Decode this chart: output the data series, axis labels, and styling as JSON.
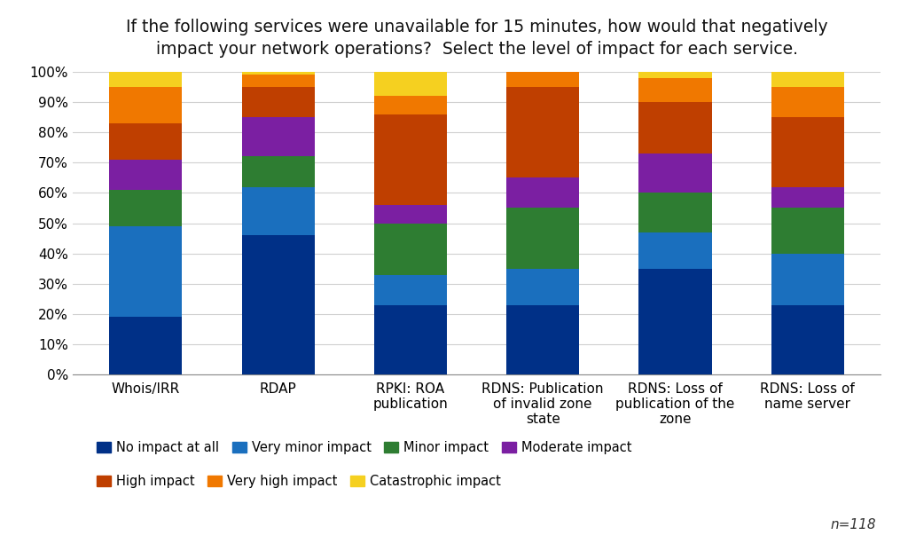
{
  "title": "If the following services were unavailable for 15 minutes, how would that negatively\nimpact your network operations?  Select the level of impact for each service.",
  "categories": [
    "Whois/IRR",
    "RDAP",
    "RPKI: ROA\npublication",
    "RDNS: Publication\nof invalid zone\nstate",
    "RDNS: Loss of\npublication of the\nzone",
    "RDNS: Loss of\nname server"
  ],
  "series": {
    "No impact at all": [
      19,
      46,
      23,
      23,
      35,
      23
    ],
    "Very minor impact": [
      30,
      16,
      10,
      12,
      12,
      17
    ],
    "Minor impact": [
      12,
      10,
      17,
      20,
      13,
      15
    ],
    "Moderate impact": [
      10,
      13,
      6,
      10,
      13,
      7
    ],
    "High impact": [
      12,
      10,
      30,
      30,
      17,
      23
    ],
    "Very high impact": [
      12,
      4,
      6,
      5,
      8,
      10
    ],
    "Catastrophic impact": [
      5,
      1,
      8,
      0,
      2,
      5
    ]
  },
  "colors": {
    "No impact at all": "#003087",
    "Very minor impact": "#1a6fbe",
    "Minor impact": "#2e7d32",
    "Moderate impact": "#7b1fa2",
    "High impact": "#bf3f00",
    "Very high impact": "#f07800",
    "Catastrophic impact": "#f5d020"
  },
  "legend_order": [
    "No impact at all",
    "Very minor impact",
    "Minor impact",
    "Moderate impact",
    "High impact",
    "Very high impact",
    "Catastrophic impact"
  ],
  "legend_row1": [
    "No impact at all",
    "Very minor impact",
    "Minor impact",
    "Moderate impact"
  ],
  "legend_row2": [
    "High impact",
    "Very high impact",
    "Catastrophic impact"
  ],
  "ylim": [
    0,
    100
  ],
  "note": "n=118",
  "background_color": "#ffffff",
  "grid_color": "#d0d0d0",
  "title_fontsize": 13.5,
  "tick_fontsize": 11,
  "legend_fontsize": 10.5
}
